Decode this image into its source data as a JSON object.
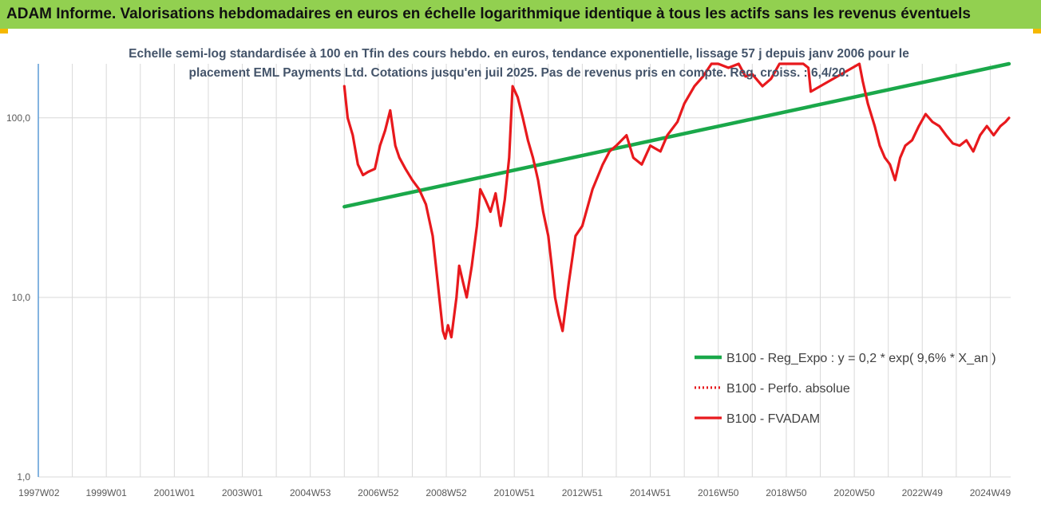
{
  "header": {
    "title": "ADAM Informe. Valorisations hebdomadaires en euros en échelle logarithmique identique à tous les actifs sans les revenus éventuels"
  },
  "colors": {
    "header_bg": "#92d050",
    "corner_accent": "#f5b800",
    "regression_line": "#1aa84a",
    "price_line": "#e8191d",
    "perf_line": "#e8191d",
    "subtitle_text": "#44546a",
    "grid": "#d9d9d9"
  },
  "chart_data": {
    "type": "line",
    "title_lines": [
      "Echelle semi-log standardisée à 100 en Tfin des cours hebdo. en euros, tendance exponentielle, lissage 57 j depuis janv 2006 pour le",
      "placement EML Payments Ltd. Cotations jusqu'en juil 2025. Pas de revenus pris en compte. Reg. croiss. : 6,4/20."
    ],
    "y_scale": "log",
    "ylim": [
      1,
      200
    ],
    "y_ticks": [
      1,
      10,
      100
    ],
    "y_tick_labels": [
      "1,0",
      "10,0",
      "100,0"
    ],
    "x_tick_labels": [
      "1997W02",
      "1999W01",
      "2001W01",
      "2003W01",
      "2004W53",
      "2006W52",
      "2008W52",
      "2010W51",
      "2012W51",
      "2014W51",
      "2016W50",
      "2018W50",
      "2020W50",
      "2022W49",
      "2024W49"
    ],
    "xlim": [
      1997.0,
      2025.6
    ],
    "grid": true,
    "legend_position": "bottom-right",
    "series": [
      {
        "name": "B100 - Reg_Expo : y = 0,2 * exp( 9,6% *  X_an )",
        "style": "solid",
        "color": "#1aa84a",
        "x": [
          2006.0,
          2025.55
        ],
        "y": [
          32,
          207
        ]
      },
      {
        "name": "B100 - Perfo. absolue",
        "style": "dotted",
        "color": "#e8191d",
        "x": [],
        "y": []
      },
      {
        "name": "B100 - FVADAM",
        "style": "solid",
        "color": "#e8191d",
        "x": [
          2006.0,
          2006.1,
          2006.25,
          2006.4,
          2006.55,
          2006.7,
          2006.9,
          2007.05,
          2007.2,
          2007.35,
          2007.5,
          2007.62,
          2007.8,
          2008.0,
          2008.2,
          2008.4,
          2008.6,
          2008.75,
          2008.9,
          2008.97,
          2009.05,
          2009.15,
          2009.3,
          2009.38,
          2009.5,
          2009.6,
          2009.75,
          2009.9,
          2010.0,
          2010.15,
          2010.3,
          2010.45,
          2010.6,
          2010.72,
          2010.85,
          2010.95,
          2011.1,
          2011.25,
          2011.4,
          2011.55,
          2011.7,
          2011.85,
          2012.0,
          2012.1,
          2012.2,
          2012.3,
          2012.42,
          2012.6,
          2012.8,
          2013.0,
          2013.3,
          2013.6,
          2013.8,
          2014.0,
          2014.3,
          2014.5,
          2014.75,
          2015.0,
          2015.3,
          2015.5,
          2015.8,
          2016.0,
          2016.3,
          2016.55,
          2016.8,
          2017.0,
          2017.3,
          2017.6,
          2017.8,
          2018.0,
          2018.3,
          2018.55,
          2018.8,
          2019.0,
          2019.3,
          2019.5,
          2019.65,
          2019.72,
          2021.15,
          2021.25,
          2021.4,
          2021.6,
          2021.75,
          2021.9,
          2022.05,
          2022.2,
          2022.35,
          2022.5,
          2022.7,
          2022.9,
          2023.1,
          2023.3,
          2023.5,
          2023.7,
          2023.9,
          2024.1,
          2024.3,
          2024.5,
          2024.7,
          2024.9,
          2025.1,
          2025.3,
          2025.45,
          2025.55
        ],
        "y": [
          150,
          100,
          80,
          55,
          48,
          50,
          52,
          70,
          85,
          110,
          70,
          60,
          52,
          45,
          40,
          33,
          22,
          12,
          6.5,
          5.9,
          7,
          6,
          10,
          15,
          12,
          10,
          15,
          25,
          40,
          35,
          30,
          38,
          25,
          35,
          60,
          150,
          130,
          100,
          75,
          60,
          45,
          30,
          22,
          15,
          10,
          8,
          6.5,
          12,
          22,
          25,
          40,
          55,
          65,
          70,
          80,
          60,
          55,
          70,
          65,
          80,
          95,
          120,
          150,
          170,
          210,
          200,
          190,
          230,
          170,
          175,
          150,
          165,
          200,
          220,
          260,
          210,
          190,
          140,
          210,
          160,
          120,
          90,
          70,
          60,
          55,
          45,
          60,
          70,
          75,
          90,
          105,
          95,
          90,
          80,
          72,
          70,
          75,
          65,
          80,
          90,
          80,
          90,
          95,
          100
        ]
      }
    ]
  }
}
